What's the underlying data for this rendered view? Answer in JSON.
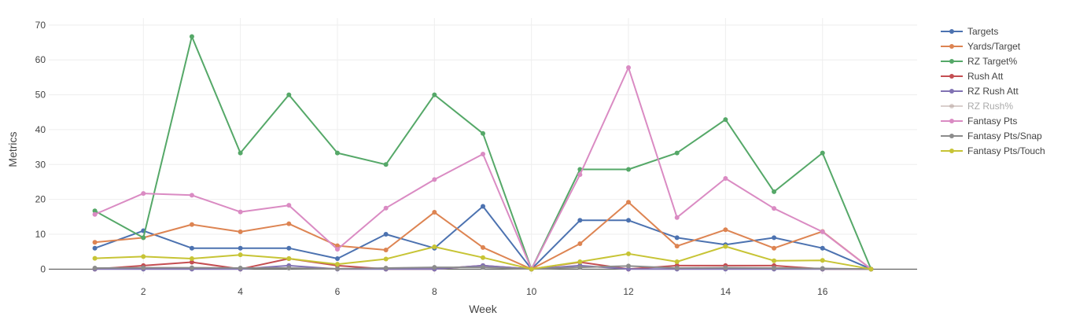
{
  "chart_data": {
    "type": "line",
    "title": "",
    "xlabel": "Week",
    "ylabel": "Metrics",
    "xlim": [
      0.05,
      17.95
    ],
    "ylim": [
      -1.5,
      72
    ],
    "x_ticks": [
      2,
      4,
      6,
      8,
      10,
      12,
      14,
      16
    ],
    "y_ticks": [
      0,
      10,
      20,
      30,
      40,
      50,
      60,
      70
    ],
    "grid": true,
    "legend_position": "top-right",
    "x": [
      1,
      2,
      3,
      4,
      5,
      6,
      7,
      8,
      9,
      10,
      11,
      12,
      13,
      14,
      15,
      16,
      17
    ],
    "series": [
      {
        "name": "Targets",
        "color": "#4c72b0",
        "visible": true,
        "values": [
          6,
          11,
          6,
          6,
          6,
          3,
          10,
          6,
          18,
          0,
          14,
          14,
          9,
          7,
          9,
          6,
          0
        ]
      },
      {
        "name": "Yards/Target",
        "color": "#dd8452",
        "visible": true,
        "values": [
          7.7,
          9,
          12.8,
          10.7,
          13,
          6.7,
          5.5,
          16.3,
          6.2,
          0,
          7.3,
          19.2,
          6.6,
          11.3,
          6,
          10.8,
          0
        ]
      },
      {
        "name": "RZ Target%",
        "color": "#55a868",
        "visible": true,
        "values": [
          16.7,
          9,
          66.7,
          33.3,
          50,
          33.3,
          30,
          50,
          38.9,
          0,
          28.6,
          28.6,
          33.3,
          42.9,
          22.2,
          33.3,
          0
        ]
      },
      {
        "name": "Rush Att",
        "color": "#c44e52",
        "visible": true,
        "values": [
          0,
          1,
          2,
          0,
          3,
          1,
          0,
          0,
          1,
          0,
          2,
          0,
          1,
          1,
          1,
          0,
          0
        ]
      },
      {
        "name": "RZ Rush Att",
        "color": "#8172b3",
        "visible": true,
        "values": [
          0,
          0,
          0,
          0,
          1,
          0,
          0,
          0,
          1,
          0,
          1,
          0,
          0,
          0,
          0,
          0,
          0
        ]
      },
      {
        "name": "RZ Rush%",
        "color": "#b5a19b",
        "visible": false,
        "values": [
          0,
          0,
          0,
          0,
          0,
          0,
          0,
          0,
          0,
          0,
          0,
          0,
          0,
          0,
          0,
          0,
          0
        ]
      },
      {
        "name": "Fantasy Pts",
        "color": "#da8bc3",
        "visible": true,
        "values": [
          15.7,
          21.7,
          21.2,
          16.4,
          18.3,
          5.7,
          17.5,
          25.7,
          33,
          0,
          27.1,
          57.8,
          14.8,
          26,
          17.4,
          10.7,
          0
        ]
      },
      {
        "name": "Fantasy Pts/Snap",
        "color": "#8c8c8c",
        "visible": true,
        "values": [
          0.3,
          0.4,
          0.4,
          0.3,
          0.3,
          0.1,
          0.3,
          0.5,
          0.5,
          0,
          0.5,
          0.9,
          0.3,
          0.4,
          0.3,
          0.2,
          0
        ]
      },
      {
        "name": "Fantasy Pts/Touch",
        "color": "#c7c435",
        "visible": true,
        "values": [
          3.1,
          3.6,
          3,
          4.1,
          3,
          1.4,
          2.9,
          6.4,
          3.3,
          0,
          2.1,
          4.4,
          2.1,
          6.5,
          2.4,
          2.5,
          0
        ]
      }
    ]
  }
}
